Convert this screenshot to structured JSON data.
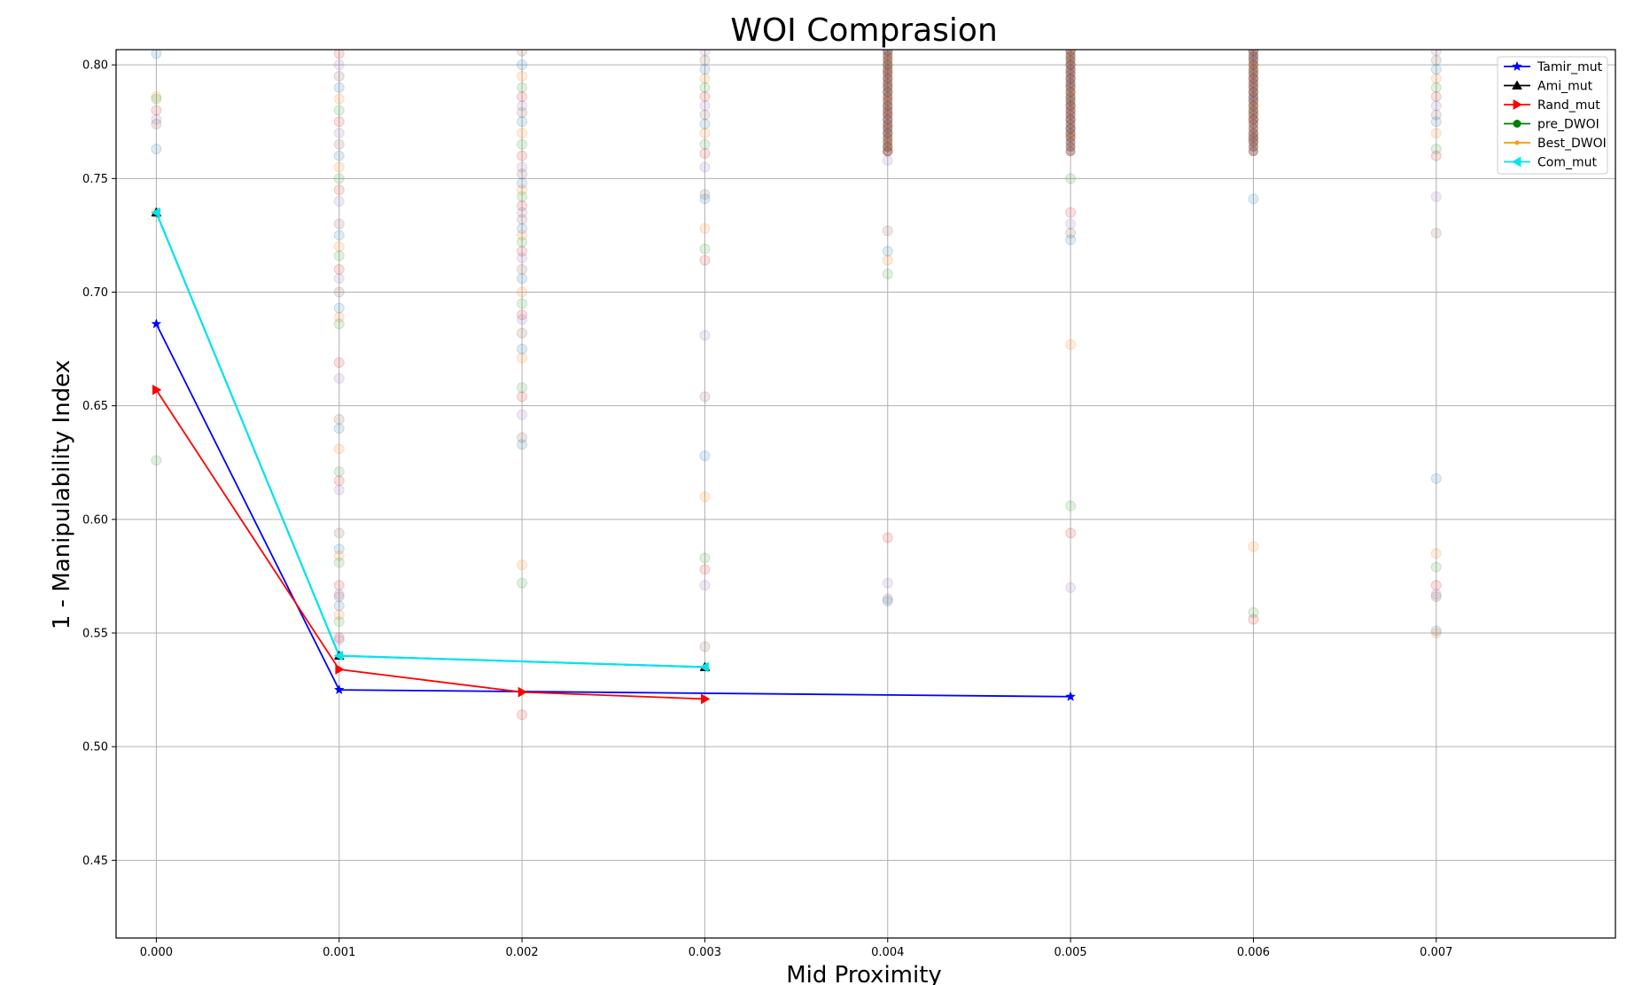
{
  "chart_data": {
    "type": "line",
    "title": "WOI Comprasion",
    "xlabel": "Mid Proximity",
    "ylabel": "1 - Manipulability Index",
    "xlim": [
      -0.00022,
      0.00798
    ],
    "ylim": [
      0.4158,
      0.8067
    ],
    "x_ticks": [
      0.0,
      0.001,
      0.002,
      0.003,
      0.004,
      0.005,
      0.006,
      0.007
    ],
    "x_tick_labels": [
      "0.000",
      "0.001",
      "0.002",
      "0.003",
      "0.004",
      "0.005",
      "0.006",
      "0.007"
    ],
    "y_ticks": [
      0.45,
      0.5,
      0.55,
      0.6,
      0.65,
      0.7,
      0.75,
      0.8
    ],
    "y_tick_labels": [
      "0.45",
      "0.50",
      "0.55",
      "0.60",
      "0.65",
      "0.70",
      "0.75",
      "0.80"
    ],
    "grid": true,
    "legend_position": "top-right",
    "series": [
      {
        "name": "Tamir_mut",
        "color": "#0000ff",
        "marker": "star",
        "x": [
          0.0,
          0.001,
          0.005
        ],
        "y": [
          0.686,
          0.525,
          0.522
        ]
      },
      {
        "name": "Ami_mut",
        "color": "#000000",
        "marker": "triangle-up",
        "x": [
          0.0,
          0.001,
          0.003
        ],
        "y": [
          0.735,
          0.54,
          0.535
        ]
      },
      {
        "name": "Rand_mut",
        "color": "#ff0000",
        "marker": "triangle-right",
        "x": [
          0.0,
          0.001,
          0.002,
          0.003
        ],
        "y": [
          0.657,
          0.534,
          0.524,
          0.521
        ]
      },
      {
        "name": "pre_DWOI",
        "color": "#008000",
        "marker": "circle",
        "x": [],
        "y": []
      },
      {
        "name": "Best_DWOI",
        "color": "#ff9900",
        "marker": "point",
        "x": [],
        "y": []
      },
      {
        "name": "Com_mut",
        "color": "#00e5ee",
        "marker": "triangle-left",
        "x": [
          0.0,
          0.001,
          0.003
        ],
        "y": [
          0.735,
          0.54,
          0.535
        ]
      }
    ],
    "scatter_background": {
      "alpha": 0.15,
      "colors": [
        "#1f77b4",
        "#ff7f0e",
        "#2ca02c",
        "#d62728",
        "#9467bd",
        "#8c564b"
      ],
      "points": [
        {
          "x": 0.0,
          "y": [
            0.805,
            0.786,
            0.785,
            0.78,
            0.776,
            0.774,
            0.763,
            0.735,
            0.626
          ]
        },
        {
          "x": 0.001,
          "y": [
            0.805,
            0.8,
            0.795,
            0.79,
            0.785,
            0.78,
            0.775,
            0.77,
            0.765,
            0.76,
            0.755,
            0.75,
            0.745,
            0.74,
            0.73,
            0.725,
            0.72,
            0.716,
            0.71,
            0.706,
            0.7,
            0.693,
            0.689,
            0.686,
            0.669,
            0.662,
            0.644,
            0.64,
            0.631,
            0.621,
            0.617,
            0.613,
            0.594,
            0.587,
            0.584,
            0.581,
            0.571,
            0.567,
            0.566,
            0.562,
            0.558,
            0.555,
            0.548,
            0.547
          ]
        },
        {
          "x": 0.002,
          "y": [
            0.806,
            0.8,
            0.795,
            0.79,
            0.786,
            0.782,
            0.779,
            0.775,
            0.77,
            0.765,
            0.76,
            0.755,
            0.752,
            0.748,
            0.745,
            0.742,
            0.738,
            0.735,
            0.732,
            0.728,
            0.725,
            0.722,
            0.718,
            0.715,
            0.71,
            0.706,
            0.7,
            0.695,
            0.69,
            0.688,
            0.682,
            0.675,
            0.671,
            0.658,
            0.654,
            0.646,
            0.636,
            0.633,
            0.58,
            0.572,
            0.514
          ]
        },
        {
          "x": 0.003,
          "y": [
            0.806,
            0.802,
            0.798,
            0.794,
            0.79,
            0.786,
            0.782,
            0.778,
            0.774,
            0.77,
            0.765,
            0.761,
            0.755,
            0.743,
            0.741,
            0.728,
            0.719,
            0.714,
            0.681,
            0.654,
            0.628,
            0.61,
            0.583,
            0.578,
            0.571,
            0.544
          ]
        },
        {
          "x": 0.004,
          "y": [
            0.806,
            0.803,
            0.8,
            0.797,
            0.794,
            0.791,
            0.788,
            0.785,
            0.782,
            0.779,
            0.776,
            0.773,
            0.77,
            0.767,
            0.764,
            0.762,
            0.758,
            0.727,
            0.718,
            0.714,
            0.708,
            0.592,
            0.572,
            0.565,
            0.564
          ]
        },
        {
          "x": 0.005,
          "y": [
            0.806,
            0.803,
            0.8,
            0.797,
            0.794,
            0.791,
            0.788,
            0.785,
            0.782,
            0.779,
            0.776,
            0.772,
            0.769,
            0.75,
            0.735,
            0.73,
            0.726,
            0.723,
            0.677,
            0.606,
            0.594,
            0.57
          ]
        },
        {
          "x": 0.006,
          "y": [
            0.806,
            0.803,
            0.8,
            0.797,
            0.794,
            0.791,
            0.788,
            0.785,
            0.782,
            0.779,
            0.776,
            0.769,
            0.767,
            0.741,
            0.588,
            0.559,
            0.556
          ]
        },
        {
          "x": 0.007,
          "y": [
            0.806,
            0.802,
            0.798,
            0.794,
            0.79,
            0.786,
            0.782,
            0.778,
            0.775,
            0.77,
            0.763,
            0.76,
            0.742,
            0.726,
            0.618,
            0.585,
            0.579,
            0.571,
            0.567,
            0.566,
            0.551,
            0.55
          ]
        }
      ]
    }
  }
}
